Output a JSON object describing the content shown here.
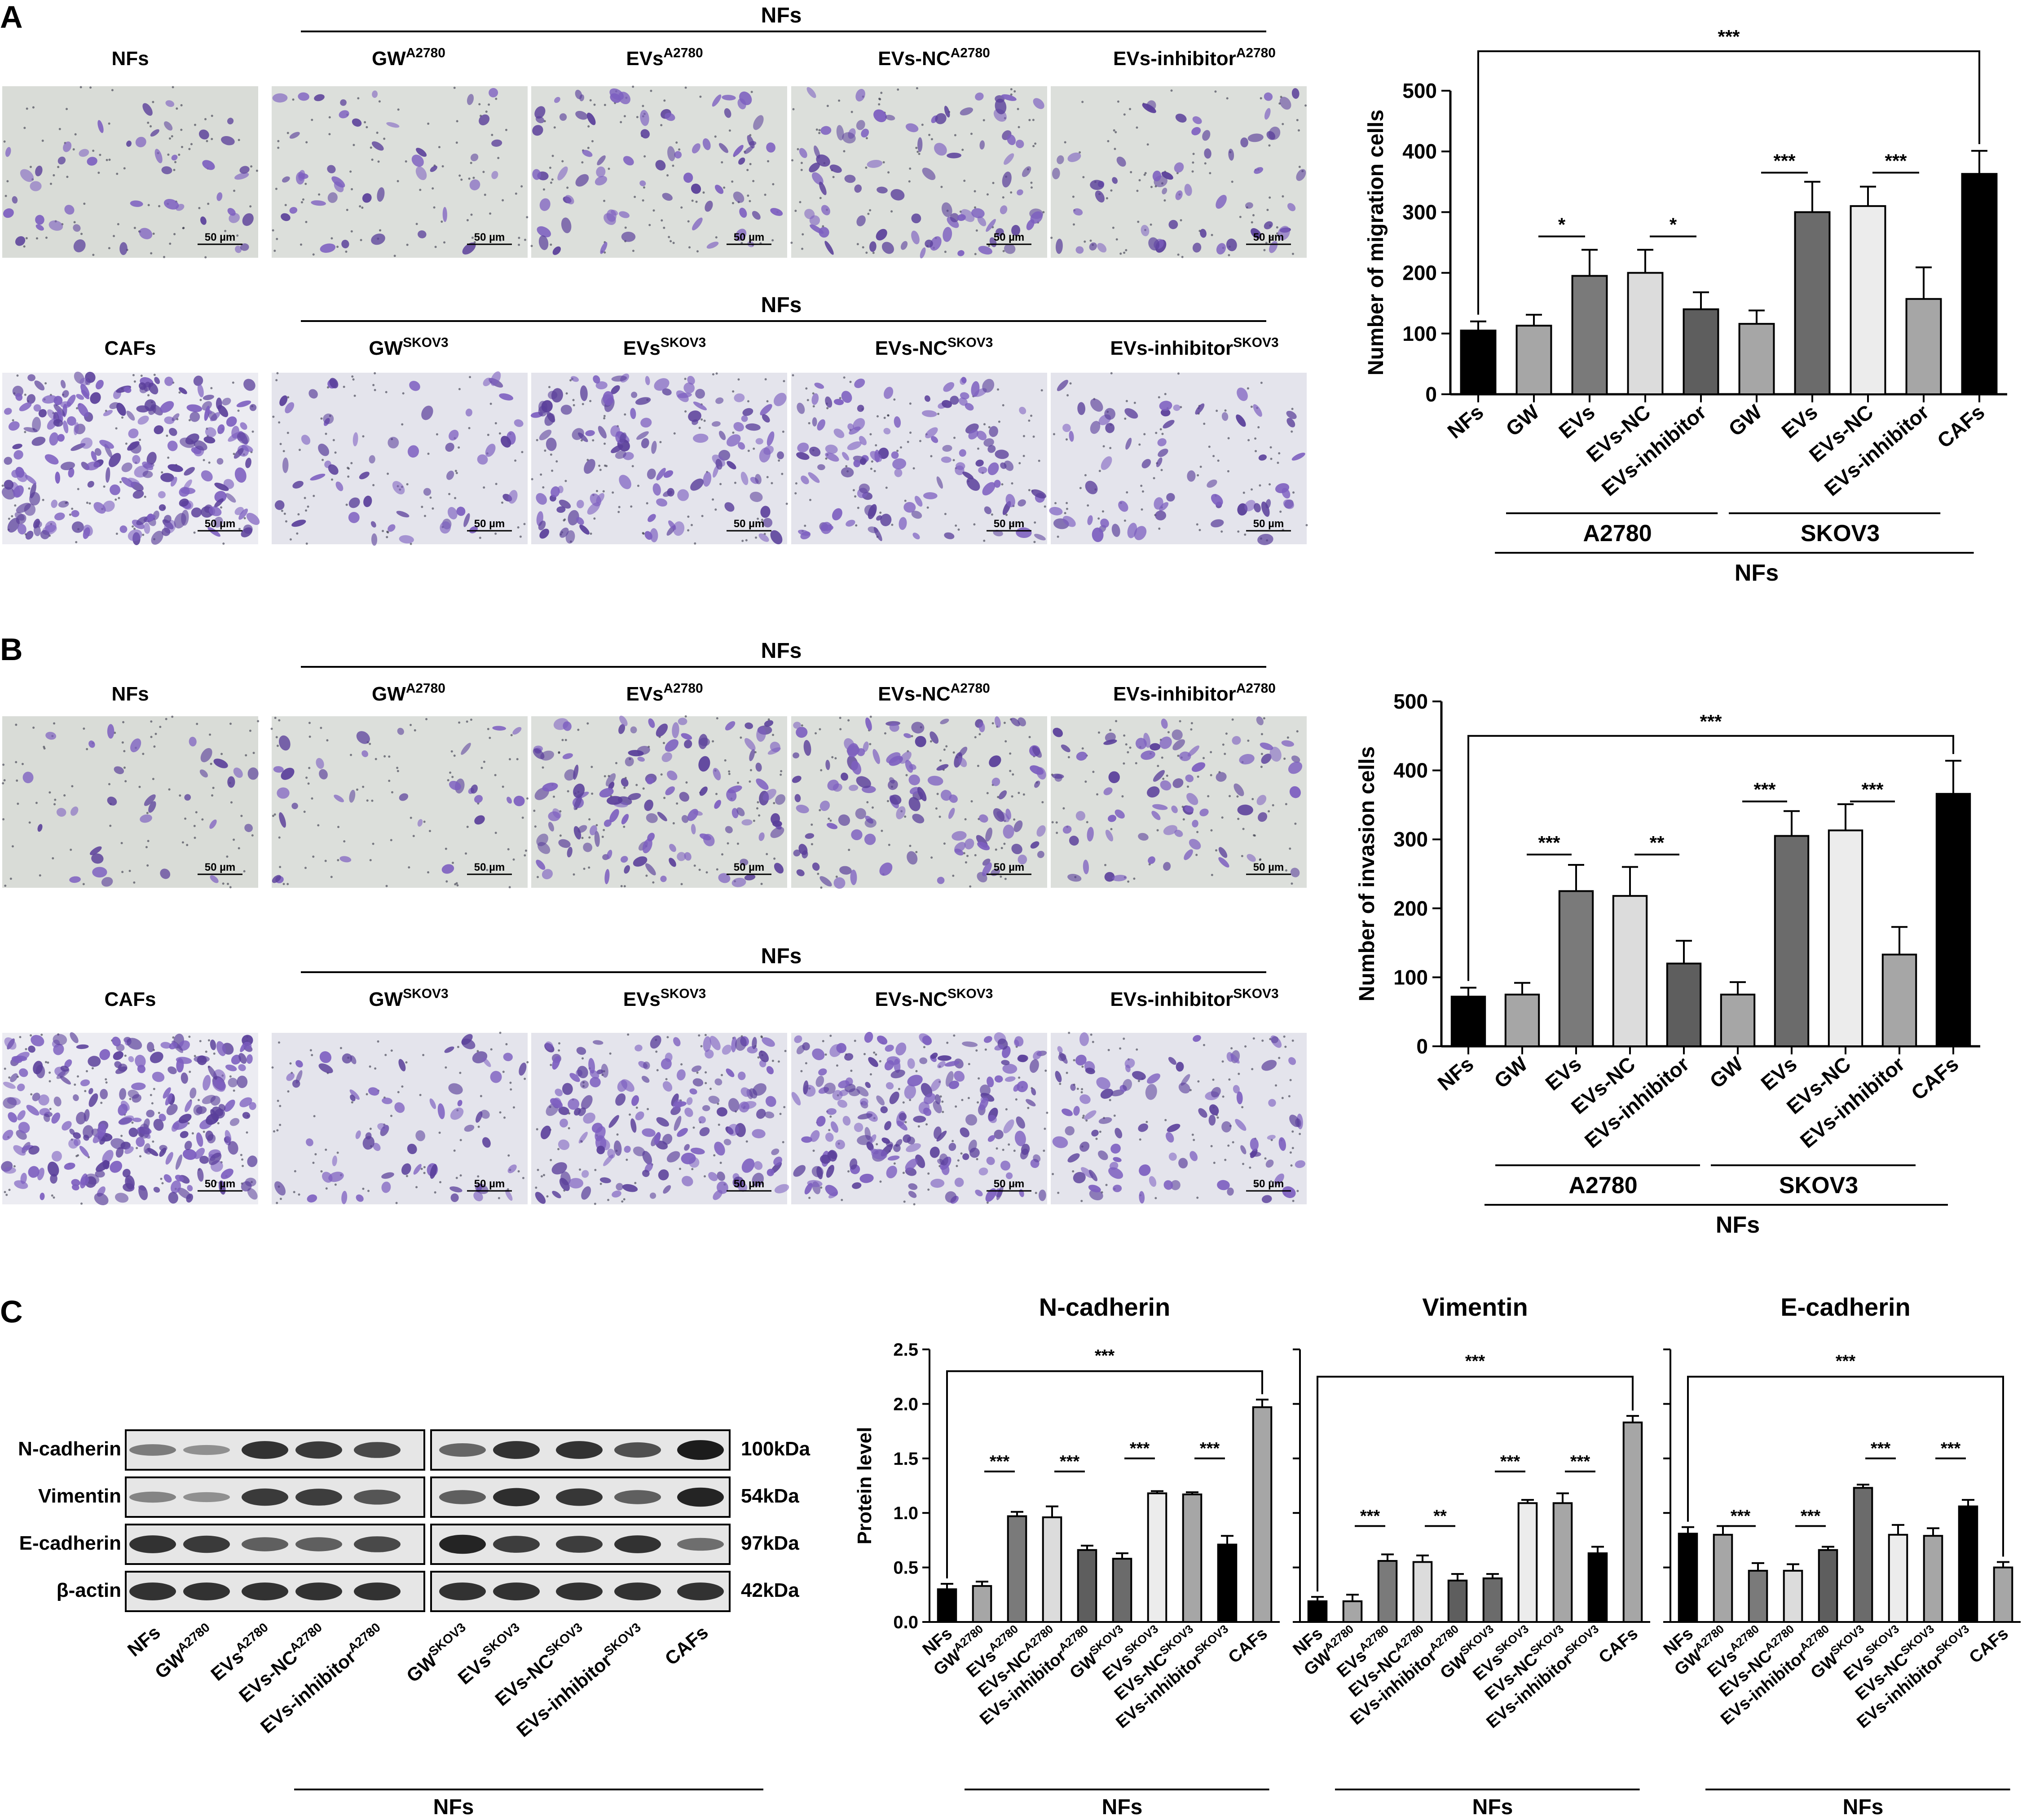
{
  "panels": {
    "A": {
      "letter": "A",
      "scale_label": "50 µm",
      "rows": [
        {
          "left_label": "CTRL_NFs",
          "group_label": "NFs",
          "group_labels": [
            "GW",
            "EVs",
            "EVs-NC",
            "EVs-inhibitor"
          ],
          "group_sup": "A2780",
          "left_text": "NFs",
          "left_tone": "light"
        },
        {
          "left_label": "CAFs",
          "group_label": "NFs",
          "group_labels": [
            "GW",
            "EVs",
            "EVs-NC",
            "EVs-inhibitor"
          ],
          "group_sup": "SKOV3",
          "left_text": "CAFs",
          "left_tone": "dense"
        }
      ],
      "chart_data": {
        "type": "bar",
        "ylabel": "Number of migration cells",
        "ylim": [
          0,
          500
        ],
        "yticks": [
          0,
          100,
          200,
          300,
          400,
          500
        ],
        "categories": [
          "NFs",
          "GW",
          "EVs",
          "EVs-NC",
          "EVs-inhibitor",
          "GW",
          "EVs",
          "EVs-NC",
          "EVs-inhibitor",
          "CAFs"
        ],
        "values": [
          105,
          113,
          195,
          200,
          140,
          116,
          300,
          310,
          157,
          363
        ],
        "errors": [
          15,
          18,
          43,
          38,
          28,
          22,
          50,
          32,
          52,
          38
        ],
        "colors": [
          "#000000",
          "#a6a6a6",
          "#7a7a7a",
          "#dcdcdc",
          "#5e5e5e",
          "#a6a6a6",
          "#6b6b6b",
          "#ececec",
          "#a6a6a6",
          "#000000"
        ],
        "significance": [
          {
            "from": 0,
            "to": 9,
            "label": "***",
            "level": 565
          },
          {
            "from": 1,
            "to": 2,
            "label": "*",
            "level": 260
          },
          {
            "from": 3,
            "to": 4,
            "label": "*",
            "level": 260
          },
          {
            "from": 5,
            "to": 6,
            "label": "***",
            "level": 365
          },
          {
            "from": 7,
            "to": 8,
            "label": "***",
            "level": 365
          }
        ],
        "groups": [
          {
            "label": "A2780",
            "from": 1,
            "to": 4
          },
          {
            "label": "SKOV3",
            "from": 5,
            "to": 8
          }
        ],
        "outer_group": {
          "label": "NFs",
          "from": 1,
          "to": 9
        }
      }
    },
    "B": {
      "letter": "B",
      "scale_label": "50 µm",
      "chart_data": {
        "type": "bar",
        "ylabel": "Number of invasion cells",
        "ylim": [
          0,
          500
        ],
        "yticks": [
          0,
          100,
          200,
          300,
          400,
          500
        ],
        "categories": [
          "NFs",
          "GW",
          "EVs",
          "EVs-NC",
          "EVs-inhibitor",
          "GW",
          "EVs",
          "EVs-NC",
          "EVs-inhibitor",
          "CAFs"
        ],
        "values": [
          72,
          75,
          225,
          218,
          120,
          75,
          305,
          313,
          133,
          366
        ],
        "errors": [
          13,
          17,
          38,
          42,
          33,
          18,
          36,
          38,
          40,
          48
        ],
        "colors": [
          "#000000",
          "#a6a6a6",
          "#7a7a7a",
          "#dcdcdc",
          "#5e5e5e",
          "#a6a6a6",
          "#6b6b6b",
          "#ececec",
          "#a6a6a6",
          "#000000"
        ],
        "significance": [
          {
            "from": 0,
            "to": 9,
            "label": "***",
            "level": 450
          },
          {
            "from": 1,
            "to": 2,
            "label": "***",
            "level": 278
          },
          {
            "from": 3,
            "to": 4,
            "label": "**",
            "level": 278
          },
          {
            "from": 5,
            "to": 6,
            "label": "***",
            "level": 355
          },
          {
            "from": 7,
            "to": 8,
            "label": "***",
            "level": 355
          }
        ],
        "groups": [
          {
            "label": "A2780",
            "from": 1,
            "to": 4
          },
          {
            "label": "SKOV3",
            "from": 5,
            "to": 8
          }
        ],
        "outer_group": {
          "label": "NFs",
          "from": 1,
          "to": 9
        }
      }
    },
    "C": {
      "letter": "C",
      "blot": {
        "proteins": [
          "N-cadherin",
          "Vimentin",
          "E-cadherin",
          "β-actin"
        ],
        "sizes": [
          "100kDa",
          "54kDa",
          "97kDa",
          "42kDa"
        ],
        "lanes": [
          {
            "base": "NFs",
            "sup": ""
          },
          {
            "base": "GW",
            "sup": "A2780"
          },
          {
            "base": "EVs",
            "sup": "A2780"
          },
          {
            "base": "EVs-NC",
            "sup": "A2780"
          },
          {
            "base": "EVs-inhibitor",
            "sup": "A2780"
          },
          {
            "base": "GW",
            "sup": "SKOV3"
          },
          {
            "base": "EVs",
            "sup": "SKOV3"
          },
          {
            "base": "EVs-NC",
            "sup": "SKOV3"
          },
          {
            "base": "EVs-inhibitor",
            "sup": "SKOV3"
          },
          {
            "base": "CAFs",
            "sup": ""
          }
        ],
        "intensity": [
          [
            0.35,
            0.22,
            0.85,
            0.8,
            0.7,
            0.5,
            0.85,
            0.85,
            0.65,
            1.0
          ],
          [
            0.3,
            0.22,
            0.8,
            0.78,
            0.62,
            0.55,
            0.88,
            0.82,
            0.55,
            0.95
          ],
          [
            0.85,
            0.8,
            0.55,
            0.55,
            0.7,
            0.95,
            0.78,
            0.78,
            0.85,
            0.45
          ],
          [
            0.85,
            0.85,
            0.85,
            0.85,
            0.85,
            0.85,
            0.85,
            0.85,
            0.85,
            0.85
          ]
        ],
        "group_label": "NFs"
      },
      "charts": [
        {
          "type": "bar",
          "title": "N-cadherin",
          "ylabel": "Protein level",
          "ylim": [
            0,
            2.5
          ],
          "yticks": [
            "0.0",
            "0.5",
            "1.0",
            "1.5",
            "2.0",
            "2.5"
          ],
          "categories": [
            "NFs",
            "GW|A2780",
            "EVs|A2780",
            "EVs-NC|A2780",
            "EVs-inhibitor|A2780",
            "GW|SKOV3",
            "EVs|SKOV3",
            "EVs-NC|SKOV3",
            "EVs-inhibitor|SKOV3",
            "CAFs"
          ],
          "values": [
            0.3,
            0.33,
            0.97,
            0.96,
            0.66,
            0.58,
            1.18,
            1.17,
            0.71,
            1.97
          ],
          "errors": [
            0.05,
            0.04,
            0.04,
            0.1,
            0.04,
            0.05,
            0.02,
            0.02,
            0.08,
            0.07
          ],
          "significance": [
            {
              "from": 0,
              "to": 9,
              "label": "***",
              "level": 2.3
            },
            {
              "from": 1,
              "to": 2,
              "label": "***",
              "level": 1.38
            },
            {
              "from": 3,
              "to": 4,
              "label": "***",
              "level": 1.38
            },
            {
              "from": 5,
              "to": 6,
              "label": "***",
              "level": 1.5
            },
            {
              "from": 7,
              "to": 8,
              "label": "***",
              "level": 1.5
            }
          ],
          "group_label": "NFs"
        },
        {
          "type": "bar",
          "title": "Vimentin",
          "ylabel": "",
          "ylim": [
            0,
            2.5
          ],
          "yticks": [],
          "categories": [
            "NFs",
            "GW|A2780",
            "EVs|A2780",
            "EVs-NC|A2780",
            "EVs-inhibitor|A2780",
            "GW|SKOV3",
            "EVs|SKOV3",
            "EVs-NC|SKOV3",
            "EVs-inhibitor|SKOV3",
            "CAFs"
          ],
          "values": [
            0.19,
            0.19,
            0.56,
            0.55,
            0.38,
            0.4,
            1.09,
            1.09,
            0.63,
            1.83
          ],
          "errors": [
            0.04,
            0.06,
            0.06,
            0.06,
            0.06,
            0.04,
            0.03,
            0.09,
            0.06,
            0.06
          ],
          "significance": [
            {
              "from": 0,
              "to": 9,
              "label": "***",
              "level": 2.25
            },
            {
              "from": 1,
              "to": 2,
              "label": "***",
              "level": 0.88
            },
            {
              "from": 3,
              "to": 4,
              "label": "**",
              "level": 0.88
            },
            {
              "from": 5,
              "to": 6,
              "label": "***",
              "level": 1.38
            },
            {
              "from": 7,
              "to": 8,
              "label": "***",
              "level": 1.38
            }
          ],
          "group_label": "NFs"
        },
        {
          "type": "bar",
          "title": "E-cadherin",
          "ylabel": "",
          "ylim": [
            0,
            2.5
          ],
          "yticks": [],
          "categories": [
            "NFs",
            "GW|A2780",
            "EVs|A2780",
            "EVs-NC|A2780",
            "EVs-inhibitor|A2780",
            "GW|SKOV3",
            "EVs|SKOV3",
            "EVs-NC|SKOV3",
            "EVs-inhibitor|SKOV3",
            "CAFs"
          ],
          "values": [
            0.81,
            0.8,
            0.47,
            0.47,
            0.66,
            1.23,
            0.8,
            0.79,
            1.06,
            0.5
          ],
          "errors": [
            0.06,
            0.08,
            0.07,
            0.06,
            0.03,
            0.03,
            0.09,
            0.07,
            0.06,
            0.05
          ],
          "significance": [
            {
              "from": 0,
              "to": 9,
              "label": "***",
              "level": 2.25
            },
            {
              "from": 1,
              "to": 2,
              "label": "***",
              "level": 0.88
            },
            {
              "from": 3,
              "to": 4,
              "label": "***",
              "level": 0.88
            },
            {
              "from": 5,
              "to": 6,
              "label": "***",
              "level": 1.5
            },
            {
              "from": 7,
              "to": 8,
              "label": "***",
              "level": 1.5
            }
          ],
          "group_label": "NFs"
        }
      ],
      "colors": [
        "#000000",
        "#a6a6a6",
        "#7a7a7a",
        "#dcdcdc",
        "#5e5e5e",
        "#6b6b6b",
        "#ececec",
        "#a6a6a6",
        "#000000",
        "#a6a6a6"
      ]
    }
  },
  "micro_colors": {
    "bg_a": "#d7dbd6",
    "bg_b": "#eeeef2",
    "cell": "#5a3f9a",
    "cell2": "#7d5fc0",
    "dot": "#333344"
  }
}
